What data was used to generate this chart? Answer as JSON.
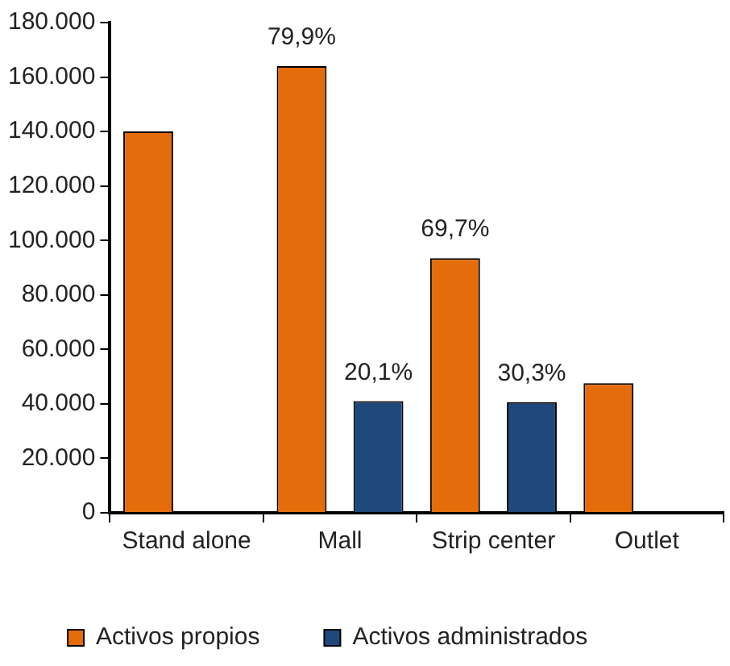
{
  "chart_data": {
    "type": "bar",
    "categories": [
      "Stand alone",
      "Mall",
      "Strip center",
      "Outlet"
    ],
    "series": [
      {
        "name": "Activos propios",
        "color": "#e46c0a",
        "values": [
          140000,
          164000,
          93500,
          47600
        ]
      },
      {
        "name": "Activos administrados",
        "color": "#1f497d",
        "values": [
          null,
          41000,
          40600,
          null
        ]
      }
    ],
    "annotations": [
      "79,9%",
      "20,1%",
      "69,7%",
      "30,3%"
    ],
    "ylim": [
      0,
      180000
    ],
    "yticks": [
      {
        "value": 0,
        "label": "0"
      },
      {
        "value": 20000,
        "label": "20.000"
      },
      {
        "value": 40000,
        "label": "40.000"
      },
      {
        "value": 60000,
        "label": "60.000"
      },
      {
        "value": 80000,
        "label": "80.000"
      },
      {
        "value": 100000,
        "label": "100.000"
      },
      {
        "value": 120000,
        "label": "120.000"
      },
      {
        "value": 140000,
        "label": "140.000"
      },
      {
        "value": 160000,
        "label": "160.000"
      },
      {
        "value": 180000,
        "label": "180.000"
      }
    ],
    "grid": false,
    "legend": "bottom"
  }
}
